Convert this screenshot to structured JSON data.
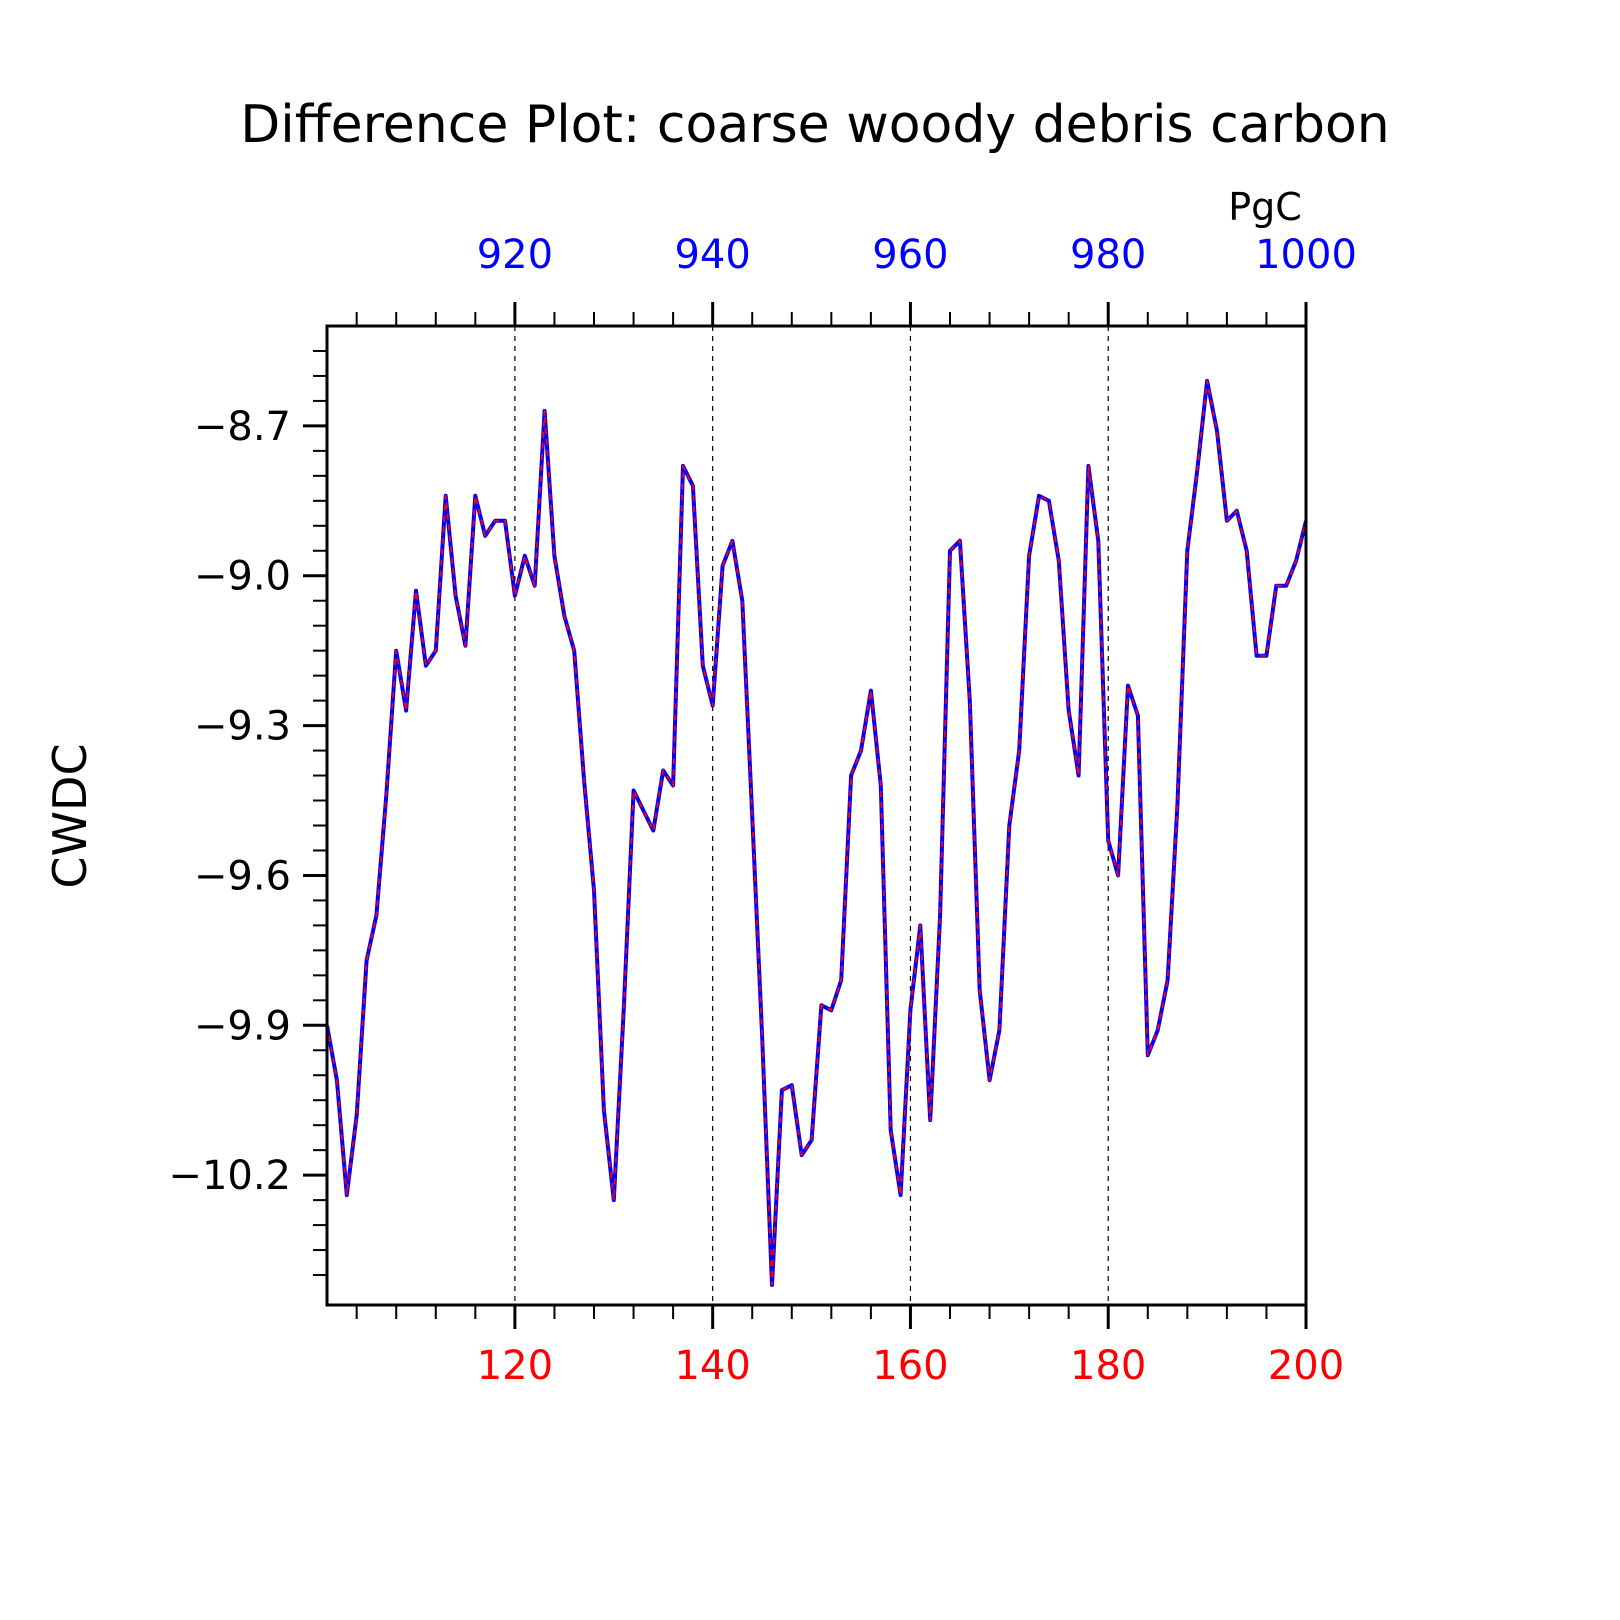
{
  "chart_data": {
    "type": "line",
    "title": "Difference Plot: coarse woody debris carbon",
    "ylabel": "CWDC",
    "units": "PgC",
    "x": [
      101,
      102,
      103,
      104,
      105,
      106,
      107,
      108,
      109,
      110,
      111,
      112,
      113,
      114,
      115,
      116,
      117,
      118,
      119,
      120,
      121,
      122,
      123,
      124,
      125,
      126,
      127,
      128,
      129,
      130,
      131,
      132,
      133,
      134,
      135,
      136,
      137,
      138,
      139,
      140,
      141,
      142,
      143,
      144,
      145,
      146,
      147,
      148,
      149,
      150,
      151,
      152,
      153,
      154,
      155,
      156,
      157,
      158,
      159,
      160,
      161,
      162,
      163,
      164,
      165,
      166,
      167,
      168,
      169,
      170,
      171,
      172,
      173,
      174,
      175,
      176,
      177,
      178,
      179,
      180,
      181,
      182,
      183,
      184,
      185,
      186,
      187,
      188,
      189,
      190,
      191,
      192,
      193,
      194,
      195,
      196,
      197,
      198,
      199,
      200
    ],
    "xlim": [
      101,
      200
    ],
    "bottom_axis": {
      "ticks": [
        120,
        140,
        160,
        180,
        200
      ],
      "color": "#ff0000"
    },
    "top_axis": {
      "ticks": [
        920,
        940,
        960,
        980,
        1000
      ],
      "offset": 800,
      "color": "#0000ff"
    },
    "y_axis": {
      "ticks": [
        "-8.7",
        "-9.0",
        "-9.3",
        "-9.6",
        "-9.9",
        "-10.2"
      ],
      "tick_values": [
        -8.7,
        -9.0,
        -9.3,
        -9.6,
        -9.9,
        -10.2
      ]
    },
    "ylim": [
      -10.46,
      -8.5
    ],
    "grid": "vertical dashed at major ticks",
    "series": [
      {
        "color": "#0000ff",
        "values": [
          -9.9,
          -10.01,
          -10.24,
          -10.08,
          -9.77,
          -9.68,
          -9.44,
          -9.15,
          -9.27,
          -9.03,
          -9.18,
          -9.15,
          -8.84,
          -9.04,
          -9.14,
          -8.84,
          -8.92,
          -8.89,
          -8.89,
          -9.04,
          -8.96,
          -9.02,
          -8.67,
          -8.96,
          -9.08,
          -9.15,
          -9.41,
          -9.63,
          -10.07,
          -10.25,
          -9.87,
          -9.43,
          -9.47,
          -9.51,
          -9.39,
          -9.42,
          -8.78,
          -8.82,
          -9.18,
          -9.26,
          -8.98,
          -8.93,
          -9.05,
          -9.48,
          -9.92,
          -10.42,
          -10.03,
          -10.02,
          -10.16,
          -10.13,
          -9.86,
          -9.87,
          -9.81,
          -9.4,
          -9.35,
          -9.23,
          -9.42,
          -10.11,
          -10.24,
          -9.87,
          -9.7,
          -10.09,
          -9.68,
          -8.95,
          -8.93,
          -9.25,
          -9.83,
          -10.01,
          -9.91,
          -9.5,
          -9.35,
          -8.96,
          -8.84,
          -8.85,
          -8.97,
          -9.27,
          -9.4,
          -8.78,
          -8.93,
          -9.53,
          -9.6,
          -9.22,
          -9.28,
          -9.96,
          -9.91,
          -9.81,
          -9.46,
          -8.95,
          -8.79,
          -8.61,
          -8.71,
          -8.89,
          -8.87,
          -8.95,
          -9.16,
          -9.16,
          -9.02,
          -9.02,
          -8.97,
          -8.89
        ]
      },
      {
        "color": "#ff0000",
        "values": [
          -9.9,
          -10.01,
          -10.24,
          -10.08,
          -9.77,
          -9.68,
          -9.44,
          -9.15,
          -9.27,
          -9.03,
          -9.18,
          -9.15,
          -8.84,
          -9.04,
          -9.14,
          -8.84,
          -8.92,
          -8.89,
          -8.89,
          -9.04,
          -8.96,
          -9.02,
          -8.67,
          -8.96,
          -9.08,
          -9.15,
          -9.41,
          -9.63,
          -10.07,
          -10.25,
          -9.87,
          -9.43,
          -9.47,
          -9.51,
          -9.39,
          -9.42,
          -8.78,
          -8.82,
          -9.18,
          -9.26,
          -8.98,
          -8.93,
          -9.05,
          -9.48,
          -9.92,
          -10.42,
          -10.03,
          -10.02,
          -10.16,
          -10.13,
          -9.86,
          -9.87,
          -9.81,
          -9.4,
          -9.35,
          -9.23,
          -9.42,
          -10.11,
          -10.24,
          -9.87,
          -9.7,
          -10.09,
          -9.68,
          -8.95,
          -8.93,
          -9.25,
          -9.83,
          -10.01,
          -9.91,
          -9.5,
          -9.35,
          -8.96,
          -8.84,
          -8.85,
          -8.97,
          -9.27,
          -9.4,
          -8.78,
          -8.93,
          -9.53,
          -9.6,
          -9.22,
          -9.28,
          -9.96,
          -9.91,
          -9.81,
          -9.46,
          -8.95,
          -8.79,
          -8.61,
          -8.71,
          -8.89,
          -8.87,
          -8.95,
          -9.16,
          -9.16,
          -9.02,
          -9.02,
          -8.97,
          -8.89
        ]
      }
    ]
  }
}
